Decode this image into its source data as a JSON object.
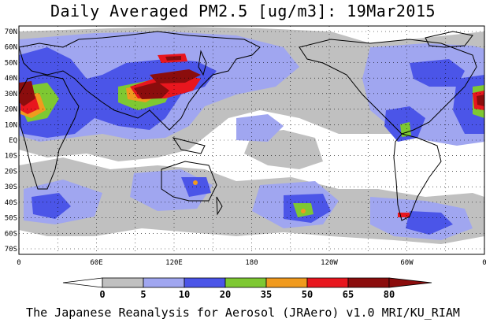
{
  "title": "Daily Averaged PM2.5 [ug/m3]: 19Mar2015",
  "footer": "The Japanese Reanalysis for Aerosol (JRAero) v1.0 MRI/KU_RIAM",
  "lat_labels": [
    "70N",
    "60N",
    "50N",
    "40N",
    "30N",
    "20N",
    "10N",
    "EQ",
    "10S",
    "20S",
    "30S",
    "40S",
    "50S",
    "60S",
    "70S"
  ],
  "lon_labels": [
    "0",
    "60E",
    "120E",
    "180",
    "120W",
    "60W",
    "0"
  ],
  "colorbar": {
    "levels": [
      "0",
      "5",
      "10",
      "20",
      "35",
      "50",
      "65",
      "80"
    ],
    "colors": [
      "#ffffff",
      "#c0c0c0",
      "#a0a6f0",
      "#4b55e8",
      "#7ec832",
      "#f09a1e",
      "#e8161e",
      "#8b0d0d"
    ]
  },
  "shading": {
    "gray": "#c0c0c0",
    "lightblue": "#a0a6f0",
    "blue": "#4b55e8",
    "green": "#7ec832",
    "orange": "#f09a1e",
    "red": "#e8161e",
    "darkred": "#8b0d0d"
  }
}
